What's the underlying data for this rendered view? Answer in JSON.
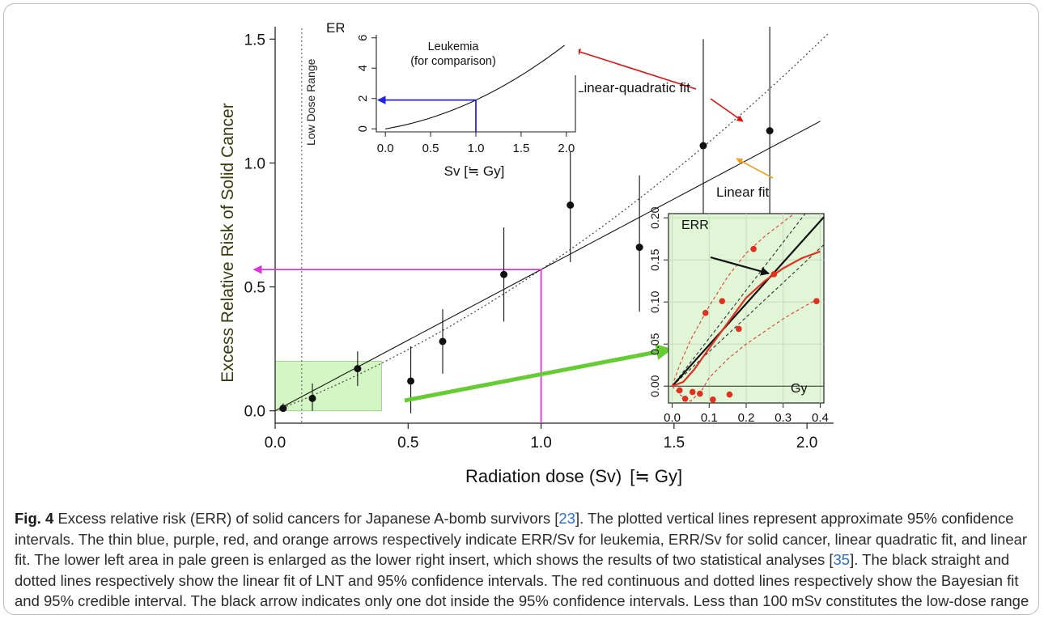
{
  "colors": {
    "blue_arrow": "#2222ee",
    "purple_arrow": "#dd33dd",
    "red_arrow": "#e01010",
    "orange_arrow": "#f0a020",
    "green_arrow": "#66cc33",
    "green_area": "#d4f5c4",
    "red_points": "#e03020"
  },
  "chart_data": [
    {
      "id": "main",
      "type": "scatter",
      "xlabel": "Radiation dose (Sv)",
      "xlabel_unit": "[≒ Gy]",
      "ylabel": "Excess Relative Risk of Solid Cancer",
      "ylabel_top": "ERR",
      "xlim": [
        0.0,
        2.1
      ],
      "ylim": [
        -0.05,
        1.55
      ],
      "xticks": [
        "0.0",
        "0.5",
        "1.0",
        "1.5",
        "2.0"
      ],
      "yticks": [
        "0.0",
        "0.5",
        "1.0",
        "1.5"
      ],
      "points": [
        {
          "x": 0.03,
          "y": 0.01,
          "lo": 0.0,
          "hi": 0.03
        },
        {
          "x": 0.14,
          "y": 0.05,
          "lo": 0.0,
          "hi": 0.11
        },
        {
          "x": 0.31,
          "y": 0.17,
          "lo": 0.1,
          "hi": 0.24
        },
        {
          "x": 0.51,
          "y": 0.12,
          "lo": -0.01,
          "hi": 0.26
        },
        {
          "x": 0.63,
          "y": 0.28,
          "lo": 0.15,
          "hi": 0.41
        },
        {
          "x": 0.86,
          "y": 0.55,
          "lo": 0.36,
          "hi": 0.74
        },
        {
          "x": 1.11,
          "y": 0.83,
          "lo": 0.6,
          "hi": 1.05
        },
        {
          "x": 1.37,
          "y": 0.66,
          "lo": 0.4,
          "hi": 0.95
        },
        {
          "x": 1.61,
          "y": 1.07,
          "lo": 0.65,
          "hi": 1.5
        },
        {
          "x": 1.86,
          "y": 1.13,
          "lo": 0.7,
          "hi": 1.57
        }
      ],
      "linear_fit": {
        "slope": 0.57,
        "intercept": 0.0
      },
      "lq_fit": {
        "a": 0.42,
        "b": 0.15
      },
      "low_dose_lines": [
        0.0,
        0.1
      ],
      "low_dose_label": "Low Dose Range",
      "purple_marker": {
        "x": 1.0,
        "y": 0.57
      },
      "green_box": {
        "x0": 0.0,
        "x1": 0.4,
        "y0": 0.0,
        "y1": 0.2
      },
      "annotations": {
        "lq": "Linear-quadratic fit",
        "linear": "Linear fit"
      }
    },
    {
      "id": "leukemia_inset",
      "type": "line",
      "title": "Leukemia",
      "subtitle": "(for comparison)",
      "xlabel": "Sv [≒ Gy]",
      "ylabel": "ERR",
      "xlim": [
        -0.1,
        2.1
      ],
      "ylim": [
        -0.2,
        6.2
      ],
      "xticks": [
        "0.0",
        "0.5",
        "1.0",
        "1.5",
        "2.0"
      ],
      "yticks": [
        "0",
        "2",
        "4",
        "6"
      ],
      "curve": {
        "a": 1.0,
        "b": 0.9
      },
      "blue_marker": {
        "x": 1.0,
        "y": 1.9
      }
    },
    {
      "id": "low_dose_inset",
      "type": "scatter",
      "ylabel": "ERR",
      "xlabel": "Gy",
      "xlim": [
        -0.01,
        0.41
      ],
      "ylim": [
        -0.02,
        0.205
      ],
      "xticks": [
        "0.0",
        "0.1",
        "0.2",
        "0.3",
        "0.4"
      ],
      "yticks": [
        "0.00",
        "0.05",
        "0.10",
        "0.15",
        "0.20"
      ],
      "points": [
        {
          "x": 0.02,
          "y": -0.005
        },
        {
          "x": 0.035,
          "y": -0.015
        },
        {
          "x": 0.055,
          "y": -0.007
        },
        {
          "x": 0.075,
          "y": -0.009
        },
        {
          "x": 0.09,
          "y": 0.087
        },
        {
          "x": 0.11,
          "y": -0.016
        },
        {
          "x": 0.135,
          "y": 0.101
        },
        {
          "x": 0.155,
          "y": -0.01
        },
        {
          "x": 0.18,
          "y": 0.068
        },
        {
          "x": 0.22,
          "y": 0.163
        },
        {
          "x": 0.275,
          "y": 0.133
        },
        {
          "x": 0.39,
          "y": 0.101
        }
      ],
      "lnt_fit": {
        "slope": 0.49
      },
      "lnt_ci": {
        "lo_slope": 0.41,
        "hi_slope": 0.57
      },
      "bayes_fit": [
        [
          0.0,
          0.0
        ],
        [
          0.03,
          0.005
        ],
        [
          0.06,
          0.02
        ],
        [
          0.1,
          0.045
        ],
        [
          0.15,
          0.075
        ],
        [
          0.2,
          0.105
        ],
        [
          0.25,
          0.125
        ],
        [
          0.3,
          0.14
        ],
        [
          0.35,
          0.152
        ],
        [
          0.4,
          0.16
        ]
      ],
      "bayes_ci_hi": [
        [
          0.0,
          0.0
        ],
        [
          0.02,
          0.025
        ],
        [
          0.05,
          0.055
        ],
        [
          0.1,
          0.095
        ],
        [
          0.15,
          0.13
        ],
        [
          0.2,
          0.158
        ],
        [
          0.25,
          0.178
        ],
        [
          0.3,
          0.195
        ],
        [
          0.33,
          0.205
        ]
      ],
      "bayes_ci_lo": [
        [
          0.0,
          0.0
        ],
        [
          0.02,
          -0.01
        ],
        [
          0.05,
          -0.018
        ],
        [
          0.08,
          -0.005
        ],
        [
          0.1,
          0.01
        ],
        [
          0.15,
          0.032
        ],
        [
          0.2,
          0.05
        ],
        [
          0.25,
          0.065
        ],
        [
          0.3,
          0.08
        ],
        [
          0.35,
          0.093
        ],
        [
          0.4,
          0.105
        ]
      ]
    }
  ],
  "caption": {
    "label": "Fig. 4",
    "p1": " Excess relative risk (ERR) of solid cancers for Japanese A-bomb survivors [",
    "ref1": "23",
    "p2": "]. The plotted vertical lines represent approximate 95% confidence intervals. The thin blue, purple, red, and orange arrows respectively indicate ERR/Sv for leukemia, ERR/Sv for solid cancer, linear quadratic fit, and linear fit. The lower left area in pale green is enlarged as the lower right insert, which shows the results of two statistical analyses [",
    "ref2": "35",
    "p3": "]. The black straight and dotted lines respectively show the linear fit of LNT and 95% confidence intervals. The red continuous and dotted lines respectively show the Bayesian fit and 95% credible interval. The black arrow indicates only one dot inside the 95% confidence intervals. Less than 100 mSv constitutes the low-dose range"
  }
}
